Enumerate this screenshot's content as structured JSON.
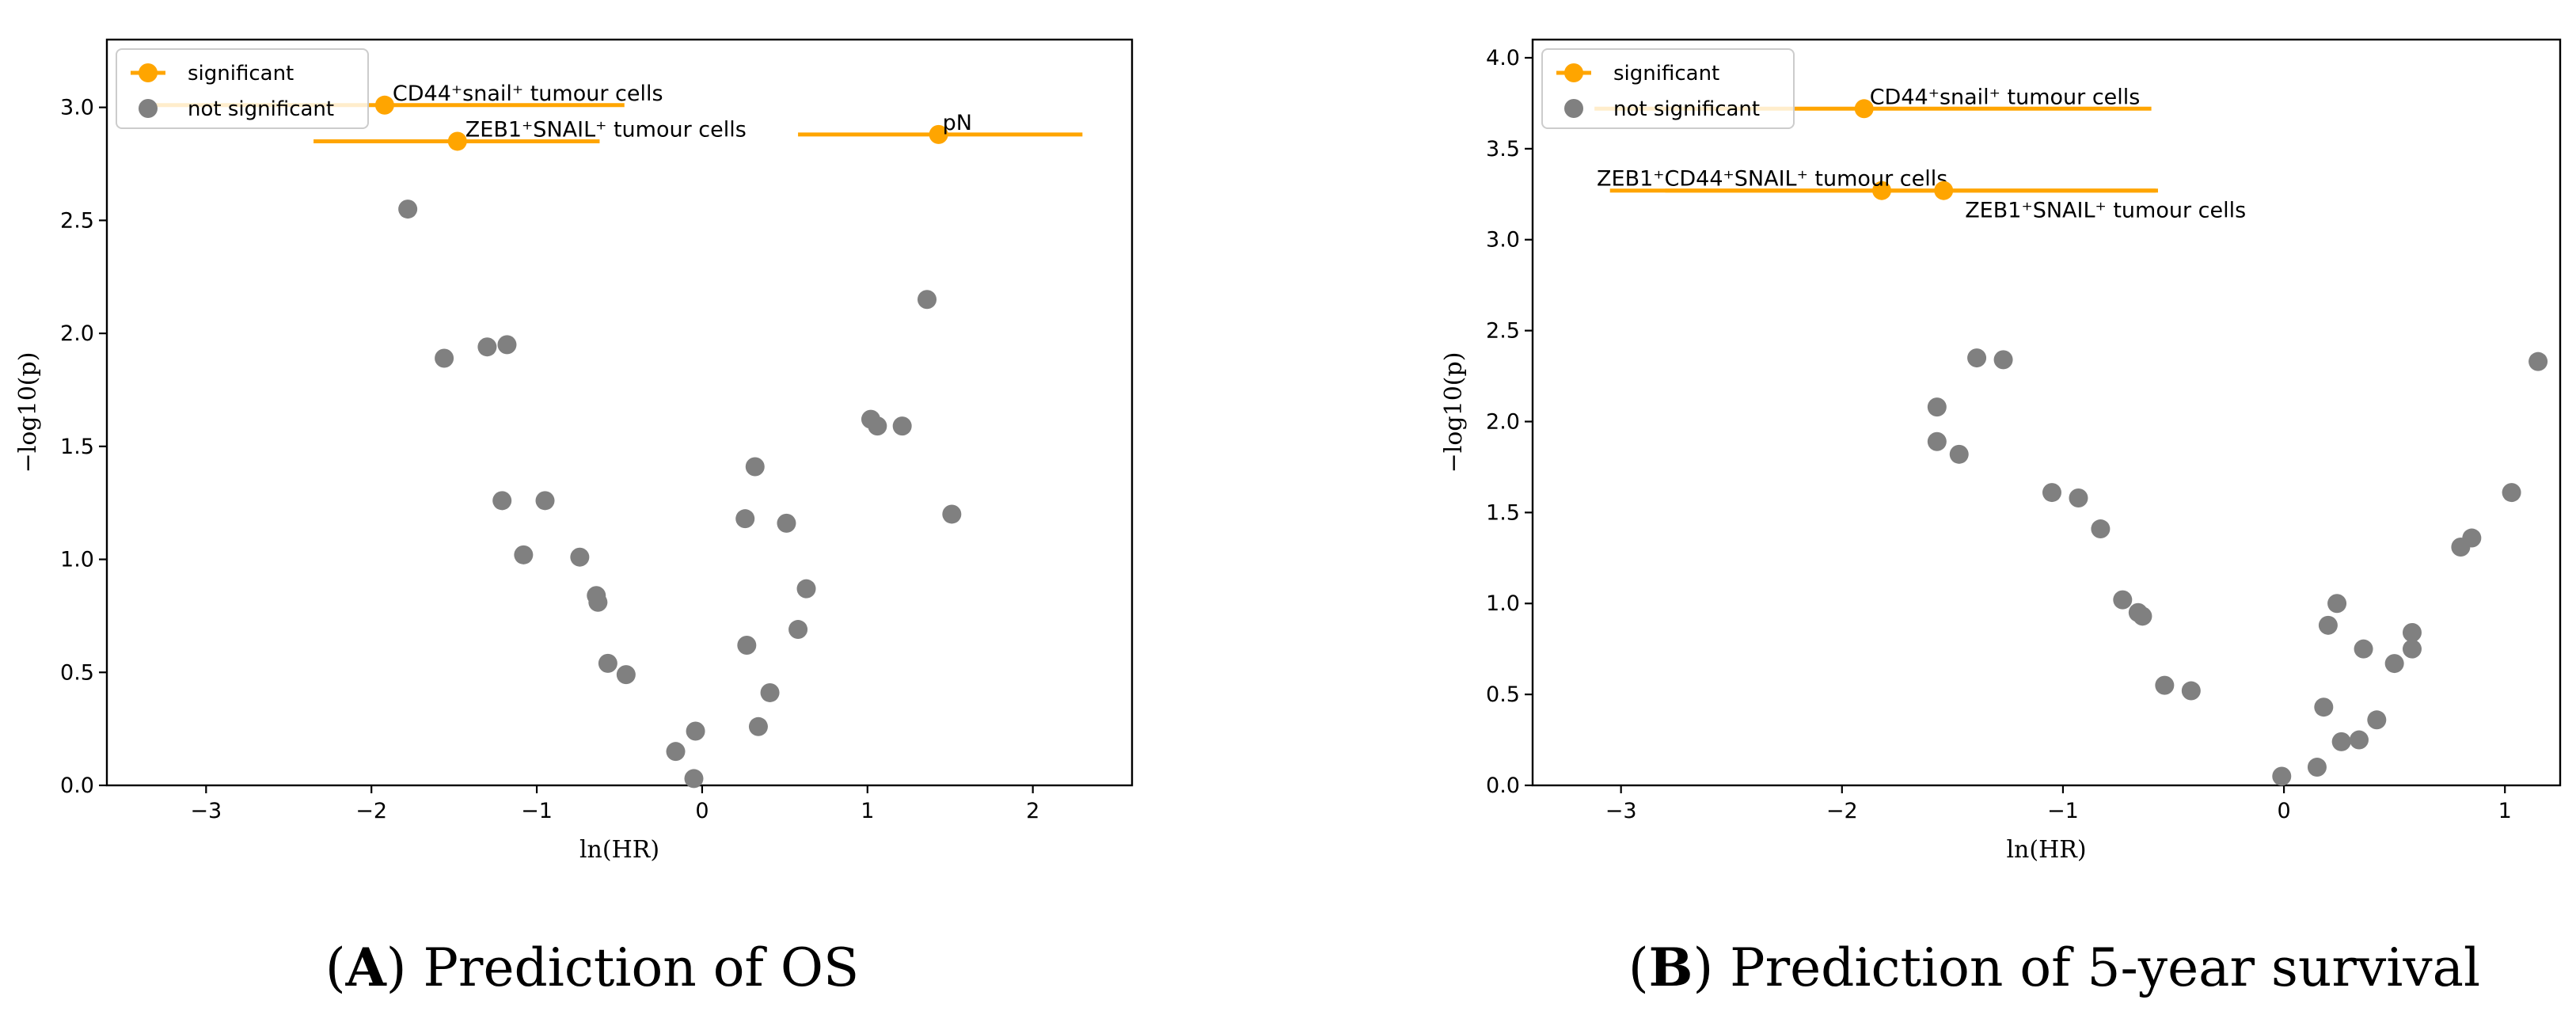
{
  "colors": {
    "significant": "#FFA500",
    "not_significant": "#808080",
    "axis": "#000000"
  },
  "legend": {
    "significant": "significant",
    "not_significant": "not significant",
    "placement": "upper-left"
  },
  "chart_data": [
    {
      "type": "scatter",
      "caption": "(A) Prediction of OS",
      "caption_letter": "A",
      "caption_text": " Prediction of OS",
      "xlabel": "ln(HR)",
      "ylabel": "−log10(p)",
      "xlim": [
        -3.6,
        2.6
      ],
      "ylim": [
        0,
        3.3
      ],
      "xticks": [
        -3,
        -2,
        -1,
        0,
        1,
        2
      ],
      "xtick_labels": [
        "−3",
        "−2",
        "−1",
        "0",
        "1",
        "2"
      ],
      "yticks": [
        0,
        0.5,
        1,
        1.5,
        2,
        2.5,
        3
      ],
      "ytick_labels": [
        "0.0",
        "0.5",
        "1.0",
        "1.5",
        "2.0",
        "2.5",
        "3.0"
      ],
      "significant": [
        {
          "x": -1.92,
          "y": 3.01,
          "ci": [
            -3.4,
            -0.47
          ],
          "label": "CD44⁺snail⁺ tumour cells"
        },
        {
          "x": -1.48,
          "y": 2.85,
          "ci": [
            -2.35,
            -0.62
          ],
          "label": "ZEB1⁺SNAIL⁺ tumour cells"
        },
        {
          "x": 1.43,
          "y": 2.88,
          "ci": [
            0.58,
            2.3
          ],
          "label": "pN"
        }
      ],
      "not_significant": [
        {
          "x": -1.78,
          "y": 2.55
        },
        {
          "x": -1.56,
          "y": 1.89
        },
        {
          "x": -1.3,
          "y": 1.94
        },
        {
          "x": -1.18,
          "y": 1.95
        },
        {
          "x": -1.21,
          "y": 1.26
        },
        {
          "x": -0.95,
          "y": 1.26
        },
        {
          "x": -1.08,
          "y": 1.02
        },
        {
          "x": -0.74,
          "y": 1.01
        },
        {
          "x": -0.64,
          "y": 0.84
        },
        {
          "x": -0.63,
          "y": 0.81
        },
        {
          "x": -0.57,
          "y": 0.54
        },
        {
          "x": -0.46,
          "y": 0.49
        },
        {
          "x": -0.16,
          "y": 0.15
        },
        {
          "x": -0.04,
          "y": 0.24
        },
        {
          "x": -0.05,
          "y": 0.03
        },
        {
          "x": 0.26,
          "y": 1.18
        },
        {
          "x": 0.32,
          "y": 1.41
        },
        {
          "x": 0.27,
          "y": 0.62
        },
        {
          "x": 0.34,
          "y": 0.26
        },
        {
          "x": 0.41,
          "y": 0.41
        },
        {
          "x": 0.51,
          "y": 1.16
        },
        {
          "x": 0.63,
          "y": 0.87
        },
        {
          "x": 0.58,
          "y": 0.69
        },
        {
          "x": 1.02,
          "y": 1.62
        },
        {
          "x": 1.06,
          "y": 1.59
        },
        {
          "x": 1.21,
          "y": 1.59
        },
        {
          "x": 1.36,
          "y": 2.15
        },
        {
          "x": 1.51,
          "y": 1.2
        }
      ]
    },
    {
      "type": "scatter",
      "caption": "(B) Prediction of 5-year survival",
      "caption_letter": "B",
      "caption_text": " Prediction of 5-year survival",
      "xlabel": "ln(HR)",
      "ylabel": "−log10(p)",
      "xlim": [
        -3.4,
        1.25
      ],
      "ylim": [
        0,
        4.1
      ],
      "xticks": [
        -3,
        -2,
        -1,
        0,
        1
      ],
      "xtick_labels": [
        "−3",
        "−2",
        "−1",
        "0",
        "1"
      ],
      "yticks": [
        0,
        0.5,
        1,
        1.5,
        2,
        2.5,
        3,
        3.5,
        4
      ],
      "ytick_labels": [
        "0.0",
        "0.5",
        "1.0",
        "1.5",
        "2.0",
        "2.5",
        "3.0",
        "3.5",
        "4.0"
      ],
      "significant": [
        {
          "x": -1.9,
          "y": 3.72,
          "ci": [
            -3.12,
            -0.6
          ],
          "label": "CD44⁺snail⁺ tumour cells"
        },
        {
          "x": -1.82,
          "y": 3.27,
          "ci": [
            -3.05,
            -0.58
          ],
          "label": "ZEB1⁺CD44⁺SNAIL⁺ tumour cells"
        },
        {
          "x": -1.54,
          "y": 3.27,
          "ci": [
            -2.8,
            -0.57
          ],
          "label": "ZEB1⁺SNAIL⁺ tumour cells"
        }
      ],
      "not_significant": [
        {
          "x": -1.57,
          "y": 2.08
        },
        {
          "x": -1.57,
          "y": 1.89
        },
        {
          "x": -1.47,
          "y": 1.82
        },
        {
          "x": -1.39,
          "y": 2.35
        },
        {
          "x": -1.27,
          "y": 2.34
        },
        {
          "x": -1.05,
          "y": 1.61
        },
        {
          "x": -0.93,
          "y": 1.58
        },
        {
          "x": -0.83,
          "y": 1.41
        },
        {
          "x": -0.73,
          "y": 1.02
        },
        {
          "x": -0.66,
          "y": 0.95
        },
        {
          "x": -0.64,
          "y": 0.93
        },
        {
          "x": -0.54,
          "y": 0.55
        },
        {
          "x": -0.42,
          "y": 0.52
        },
        {
          "x": -0.01,
          "y": 0.05
        },
        {
          "x": 0.15,
          "y": 0.1
        },
        {
          "x": 0.18,
          "y": 0.43
        },
        {
          "x": 0.2,
          "y": 0.88
        },
        {
          "x": 0.24,
          "y": 1.0
        },
        {
          "x": 0.26,
          "y": 0.24
        },
        {
          "x": 0.34,
          "y": 0.25
        },
        {
          "x": 0.36,
          "y": 0.75
        },
        {
          "x": 0.42,
          "y": 0.36
        },
        {
          "x": 0.5,
          "y": 0.67
        },
        {
          "x": 0.58,
          "y": 0.84
        },
        {
          "x": 0.58,
          "y": 0.75
        },
        {
          "x": 0.8,
          "y": 1.31
        },
        {
          "x": 0.85,
          "y": 1.36
        },
        {
          "x": 1.03,
          "y": 1.61
        },
        {
          "x": 1.15,
          "y": 2.33
        }
      ]
    }
  ]
}
